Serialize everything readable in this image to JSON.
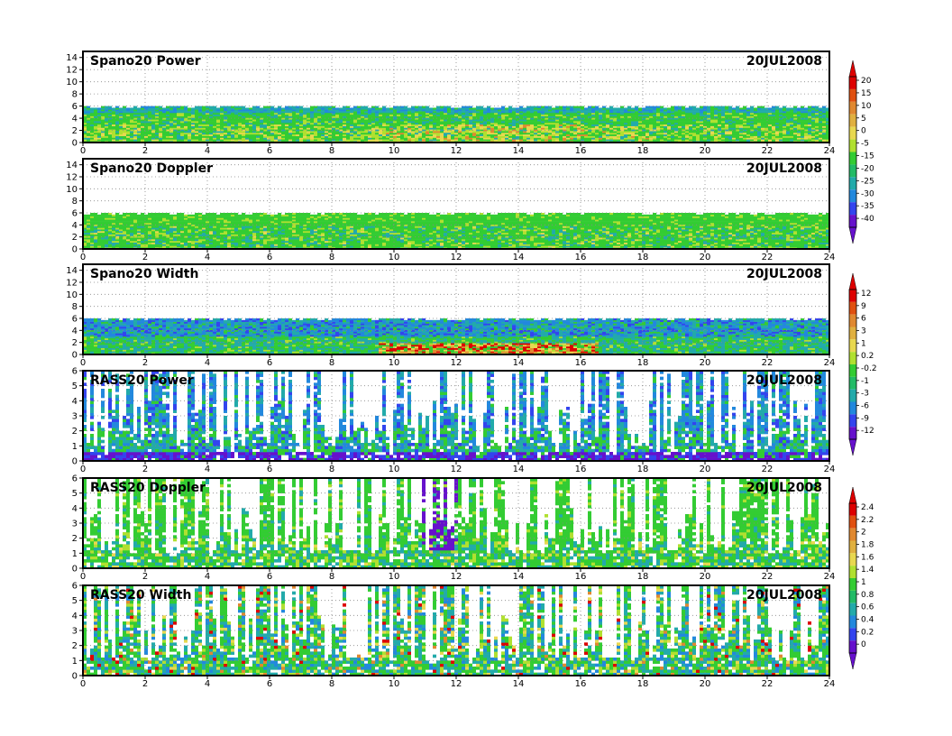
{
  "chart_data": [
    {
      "type": "heatmap",
      "title": "Spano20 Power",
      "date": "20JUL2008",
      "xlim": [
        0,
        24
      ],
      "xticks": [
        0,
        2,
        4,
        6,
        8,
        10,
        12,
        14,
        16,
        18,
        20,
        22,
        24
      ],
      "ylim": [
        0,
        15
      ],
      "yticks": [
        0,
        2,
        4,
        6,
        8,
        10,
        12,
        14
      ],
      "grid": true,
      "colorbar": {
        "ticks": [
          "20",
          "15",
          "10",
          "5",
          "0",
          "-5",
          "-15",
          "-20",
          "-25",
          "-30",
          "-35",
          "-40"
        ],
        "colors": [
          "#dd0000",
          "#e05010",
          "#e08830",
          "#e0b040",
          "#e8d850",
          "#b0e030",
          "#33cc33",
          "#22bb66",
          "#22aaaa",
          "#2288dd",
          "#3344ee",
          "#6611cc"
        ]
      },
      "content_top": 6
    },
    {
      "type": "heatmap",
      "title": "Spano20 Doppler",
      "date": "20JUL2008",
      "xlim": [
        0,
        24
      ],
      "xticks": [
        0,
        2,
        4,
        6,
        8,
        10,
        12,
        14,
        16,
        18,
        20,
        22,
        24
      ],
      "ylim": [
        0,
        15
      ],
      "yticks": [
        0,
        2,
        4,
        6,
        8,
        10,
        12,
        14
      ],
      "grid": true,
      "content_top": 6
    },
    {
      "type": "heatmap",
      "title": "Spano20 Width",
      "date": "20JUL2008",
      "xlim": [
        0,
        24
      ],
      "xticks": [
        0,
        2,
        4,
        6,
        8,
        10,
        12,
        14,
        16,
        18,
        20,
        22,
        24
      ],
      "ylim": [
        0,
        15
      ],
      "yticks": [
        0,
        2,
        4,
        6,
        8,
        10,
        12,
        14
      ],
      "grid": true,
      "colorbar": {
        "ticks": [
          "12",
          "9",
          "6",
          "3",
          "1",
          "0.2",
          "-0.2",
          "-1",
          "-3",
          "-6",
          "-9",
          "-12"
        ],
        "colors": [
          "#dd0000",
          "#e05010",
          "#e08830",
          "#e0b040",
          "#e8d850",
          "#b0e030",
          "#33cc33",
          "#22bb66",
          "#22aaaa",
          "#2288dd",
          "#3344ee",
          "#6611cc"
        ]
      },
      "content_top": 6
    },
    {
      "type": "heatmap",
      "title": "RASS20 Power",
      "date": "20JUL2008",
      "xlim": [
        0,
        24
      ],
      "xticks": [
        0,
        2,
        4,
        6,
        8,
        10,
        12,
        14,
        16,
        18,
        20,
        22,
        24
      ],
      "ylim": [
        0,
        6
      ],
      "yticks": [
        0,
        1,
        2,
        3,
        4,
        5,
        6
      ],
      "grid": true,
      "content_top": 6
    },
    {
      "type": "heatmap",
      "title": "RASS20 Doppler",
      "date": "20JUL2008",
      "xlim": [
        0,
        24
      ],
      "xticks": [
        0,
        2,
        4,
        6,
        8,
        10,
        12,
        14,
        16,
        18,
        20,
        22,
        24
      ],
      "ylim": [
        0,
        6
      ],
      "yticks": [
        0,
        1,
        2,
        3,
        4,
        5,
        6
      ],
      "grid": true,
      "colorbar": {
        "ticks": [
          "2.4",
          "2.2",
          "2",
          "1.8",
          "1.6",
          "1.4",
          "1",
          "0.8",
          "0.6",
          "0.4",
          "0.2",
          "0"
        ],
        "colors": [
          "#dd0000",
          "#e05010",
          "#e08830",
          "#e0b040",
          "#e8d850",
          "#b0e030",
          "#33cc33",
          "#22bb66",
          "#22aaaa",
          "#2288dd",
          "#3344ee",
          "#6611cc"
        ]
      },
      "content_top": 6
    },
    {
      "type": "heatmap",
      "title": "RASS20 Width",
      "date": "20JUL2008",
      "xlim": [
        0,
        24
      ],
      "xticks": [
        0,
        2,
        4,
        6,
        8,
        10,
        12,
        14,
        16,
        18,
        20,
        22,
        24
      ],
      "ylim": [
        0,
        6
      ],
      "yticks": [
        0,
        1,
        2,
        3,
        4,
        5,
        6
      ],
      "grid": true,
      "content_top": 6
    }
  ],
  "colors": {
    "red": "#dd0000",
    "orange": "#e08830",
    "yellow": "#e8d850",
    "lime": "#b0e030",
    "green": "#33cc33",
    "teal": "#22aaaa",
    "blue": "#2288dd",
    "darkblue": "#3344ee",
    "purple": "#6611cc",
    "white": "#ffffff"
  }
}
